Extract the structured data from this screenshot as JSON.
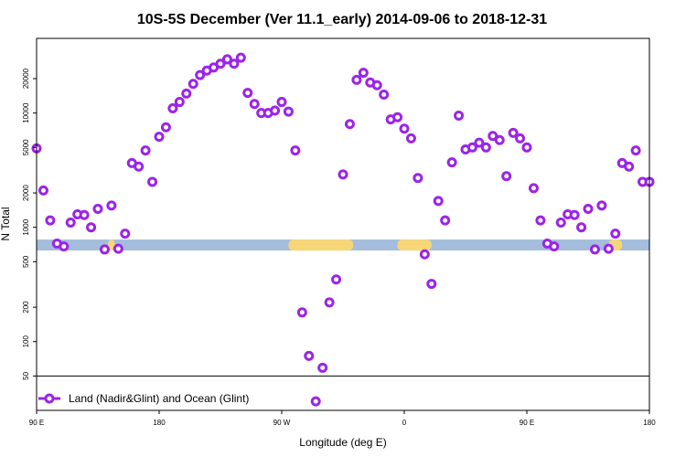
{
  "chart_data": {
    "type": "scatter",
    "title": "10S-5S December (Ver 11.1_early)   2014-09-06 to 2018-12-31",
    "xlabel": "Longitude (deg E)",
    "ylabel": "N Total",
    "xlim": [
      90,
      270
    ],
    "ylim_log": [
      25,
      45000
    ],
    "x_ticks": [
      {
        "value": 90,
        "label": "90 E"
      },
      {
        "value": 126,
        "label": "180"
      },
      {
        "value": 162,
        "label": "90 W"
      },
      {
        "value": 198,
        "label": "0"
      },
      {
        "value": 234,
        "label": "90 E"
      },
      {
        "value": 270,
        "label": "180"
      }
    ],
    "y_ticks": [
      {
        "value": 50,
        "label": "50"
      },
      {
        "value": 100,
        "label": "100"
      },
      {
        "value": 200,
        "label": "200"
      },
      {
        "value": 500,
        "label": "500"
      },
      {
        "value": 1000,
        "label": "1000"
      },
      {
        "value": 2000,
        "label": "2000"
      },
      {
        "value": 5000,
        "label": "5000"
      },
      {
        "value": 10000,
        "label": "10000"
      },
      {
        "value": 20000,
        "label": "20000"
      }
    ],
    "series": [
      {
        "name": "Land (Nadir&Glint) and Ocean (Glint)",
        "color": "#9b24e8",
        "x": [
          90,
          92,
          94,
          96,
          98,
          100,
          102,
          104,
          106,
          108,
          110,
          112,
          114,
          116,
          118,
          120,
          122,
          124,
          126,
          128,
          130,
          132,
          134,
          136,
          138,
          140,
          142,
          144,
          146,
          148,
          150,
          152,
          154,
          156,
          158,
          160,
          162,
          164,
          166,
          168,
          170,
          172,
          174,
          176,
          178,
          180,
          182,
          184,
          186,
          188,
          190,
          192,
          194,
          196,
          198,
          200,
          202,
          204,
          206,
          208,
          210,
          212,
          214,
          216,
          218,
          220,
          222,
          224,
          226,
          228,
          230,
          232,
          234,
          236,
          238,
          240,
          242,
          244,
          246,
          248,
          250,
          252,
          254,
          256,
          258,
          260,
          262,
          264,
          266,
          268,
          270
        ],
        "y": [
          4900,
          2100,
          1150,
          720,
          680,
          1100,
          1300,
          1280,
          1000,
          1450,
          640,
          1550,
          650,
          880,
          3650,
          3400,
          4700,
          2500,
          6200,
          7500,
          11000,
          12500,
          14800,
          18000,
          21500,
          23500,
          25000,
          27000,
          29500,
          27000,
          30500,
          15000,
          12000,
          10000,
          10000,
          10500,
          12500,
          10300,
          4700,
          180,
          75,
          30,
          59,
          220,
          350,
          2900,
          8000,
          19500,
          22500,
          18500,
          17500,
          14500,
          8800,
          9200,
          7300,
          6000,
          2700,
          580,
          320,
          1700,
          1150,
          3700,
          9500,
          4800,
          5000,
          5500,
          5000,
          6300,
          5800,
          2800,
          6700,
          6000,
          5000,
          2200,
          1150,
          720,
          680,
          1100,
          1300,
          1280,
          1000,
          1450,
          640,
          1550,
          650,
          880,
          3650,
          3400,
          4700,
          2500,
          2500
        ]
      }
    ],
    "band": {
      "value": 700,
      "ocean_color": "#a4bddc",
      "land_color": "#f7d678",
      "land_ranges": [
        [
          111,
          113
        ],
        [
          164,
          183
        ],
        [
          196,
          206
        ],
        [
          258,
          262
        ]
      ]
    },
    "reference_line": {
      "value": 50,
      "color": "#000000"
    },
    "legend": {
      "position": "bottom-left",
      "entries": [
        "Land (Nadir&Glint) and Ocean (Glint)"
      ]
    },
    "grid": false
  }
}
